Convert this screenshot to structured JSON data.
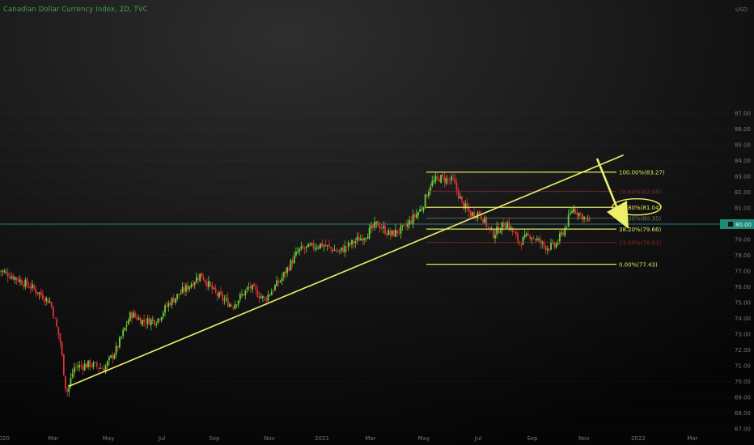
{
  "title": "Canadian Dollar Currency Index, 2D, TVC",
  "chart_data": {
    "type": "candlestick",
    "title": "Canadian Dollar Currency Index, 2D, TVC",
    "currency_label": "USD",
    "x_tick_labels": [
      "2020",
      "Mar",
      "May",
      "Jul",
      "Sep",
      "Nov",
      "2021",
      "Mar",
      "May",
      "Jul",
      "Sep",
      "Nov",
      "2022",
      "Mar"
    ],
    "y_tick_labels": [
      "87.00",
      "86.00",
      "85.00",
      "84.00",
      "83.00",
      "82.00",
      "81.00",
      "80.00",
      "79.00",
      "78.00",
      "77.00",
      "76.00",
      "75.00",
      "74.00",
      "73.00",
      "72.00",
      "71.00",
      "70.00",
      "69.00",
      "68.00",
      "67.00"
    ],
    "ylim": [
      66.7,
      87.3
    ],
    "last_price": "80.00",
    "fib_levels": [
      {
        "label": "100.00%(83.27)",
        "value": 83.27,
        "color": "#dfe65a",
        "faded": false
      },
      {
        "label": "78.60%(82.06)",
        "value": 82.06,
        "color": "#9c2f2f",
        "faded": true
      },
      {
        "label": "61.80%(81.04)",
        "value": 81.04,
        "color": "#dfe65a",
        "faded": false
      },
      {
        "label": "50.00%(80.35)",
        "value": 80.35,
        "color": "#8c8c6a",
        "faded": true
      },
      {
        "label": "38.20%(79.66)",
        "value": 79.66,
        "color": "#dfe65a",
        "faded": false
      },
      {
        "label": "23.60%(78.81)",
        "value": 78.81,
        "color": "#9c2f2f",
        "faded": true
      },
      {
        "label": "0.00%(77.43)",
        "value": 77.43,
        "color": "#dfe65a",
        "faded": false
      }
    ],
    "trendline": {
      "start": {
        "x": "2020-03-20",
        "y": 69.7
      },
      "end": {
        "x": "2021-12-15",
        "y": 84.35
      }
    },
    "anchors": [
      [
        "2019-12-31",
        77.1
      ],
      [
        "2020-01-20",
        76.6
      ],
      [
        "2020-02-10",
        75.9
      ],
      [
        "2020-03-01",
        75.0
      ],
      [
        "2020-03-12",
        72.5
      ],
      [
        "2020-03-19",
        69.2
      ],
      [
        "2020-03-28",
        70.9
      ],
      [
        "2020-04-15",
        71.1
      ],
      [
        "2020-05-01",
        70.8
      ],
      [
        "2020-05-15",
        72.0
      ],
      [
        "2020-06-01",
        74.3
      ],
      [
        "2020-06-15",
        73.8
      ],
      [
        "2020-07-01",
        73.9
      ],
      [
        "2020-07-15",
        75.0
      ],
      [
        "2020-08-05",
        76.0
      ],
      [
        "2020-08-20",
        76.8
      ],
      [
        "2020-09-05",
        75.6
      ],
      [
        "2020-09-25",
        74.8
      ],
      [
        "2020-10-15",
        76.0
      ],
      [
        "2020-11-01",
        75.2
      ],
      [
        "2020-11-20",
        76.5
      ],
      [
        "2020-12-10",
        78.3
      ],
      [
        "2021-01-05",
        78.7
      ],
      [
        "2021-01-25",
        78.2
      ],
      [
        "2021-02-10",
        78.8
      ],
      [
        "2021-02-25",
        79.3
      ],
      [
        "2021-03-10",
        80.0
      ],
      [
        "2021-03-25",
        79.3
      ],
      [
        "2021-04-10",
        79.7
      ],
      [
        "2021-04-30",
        81.0
      ],
      [
        "2021-05-10",
        82.5
      ],
      [
        "2021-05-20",
        82.9
      ],
      [
        "2021-06-05",
        82.7
      ],
      [
        "2021-06-15",
        81.3
      ],
      [
        "2021-06-25",
        80.6
      ],
      [
        "2021-07-05",
        80.7
      ],
      [
        "2021-07-20",
        79.3
      ],
      [
        "2021-08-05",
        80.1
      ],
      [
        "2021-08-20",
        78.8
      ],
      [
        "2021-09-01",
        79.3
      ],
      [
        "2021-09-20",
        78.5
      ],
      [
        "2021-09-30",
        78.6
      ],
      [
        "2021-10-10",
        79.6
      ],
      [
        "2021-10-20",
        81.0
      ],
      [
        "2021-10-28",
        80.6
      ],
      [
        "2021-11-06",
        80.2
      ]
    ]
  }
}
